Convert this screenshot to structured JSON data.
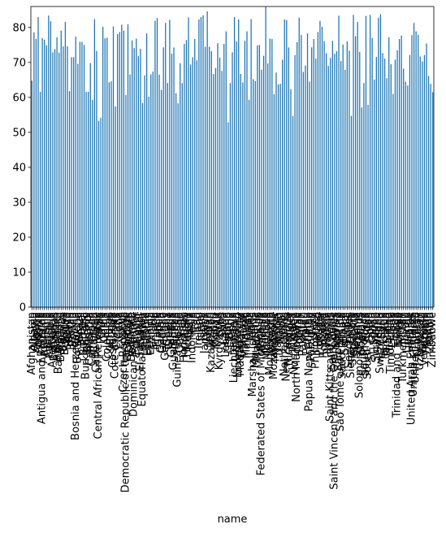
{
  "chart_data": {
    "type": "bar",
    "title": "",
    "xlabel": "name",
    "ylabel": "",
    "ylim": [
      0,
      86
    ],
    "yticks": [
      0,
      10,
      20,
      30,
      40,
      50,
      60,
      70,
      80
    ],
    "grid": false,
    "legend": "none",
    "bar_color": "#1f77b4",
    "categories": [
      "Afghanistan",
      "Albania",
      "Algeria",
      "Andorra",
      "Angola",
      "Antigua and Barbuda",
      "Argentina",
      "Armenia",
      "Australia",
      "Austria",
      "Azerbaijan",
      "Bahamas",
      "Bahrain",
      "Bangladesh",
      "Barbados",
      "Belarus",
      "Belgium",
      "Belize",
      "Benin",
      "Bhutan",
      "Bolivia",
      "Bosnia and Herzegovina",
      "Botswana",
      "Brazil",
      "Brunei",
      "Bulgaria",
      "Burkina Faso",
      "Burundi",
      "Cambodia",
      "Cameroon",
      "Canada",
      "Cape Verde",
      "Central African Republic",
      "Chad",
      "Chile",
      "China",
      "Colombia",
      "Comoros",
      "Congo",
      "Costa Rica",
      "Cote d'Ivoire",
      "Croatia",
      "Cuba",
      "Cyprus",
      "Czech Republic",
      "Democratic Republic of the Congo",
      "Denmark",
      "Djibouti",
      "Dominica",
      "Dominican Republic",
      "Ecuador",
      "Egypt",
      "El Salvador",
      "Equatorial Guinea",
      "Eritrea",
      "Estonia",
      "Eswatini",
      "Ethiopia",
      "Fiji",
      "Finland",
      "France",
      "Gabon",
      "Gambia",
      "Georgia",
      "Germany",
      "Ghana",
      "Greece",
      "Grenada",
      "Guatemala",
      "Guinea",
      "Guinea-Bissau",
      "Guyana",
      "Haiti",
      "Honduras",
      "Hungary",
      "Iceland",
      "India",
      "Indonesia",
      "Iran",
      "Iraq",
      "Ireland",
      "Israel",
      "Italy",
      "Jamaica",
      "Japan",
      "Jordan",
      "Kazakhstan",
      "Kenya",
      "Kiribati",
      "Kuwait",
      "Kyrgyzstan",
      "Laos",
      "Latvia",
      "Lebanon",
      "Lesotho",
      "Liberia",
      "Libya",
      "Liechtenstein",
      "Lithuania",
      "Luxembourg",
      "Madagascar",
      "Malawi",
      "Malaysia",
      "Maldives",
      "Mali",
      "Malta",
      "Marshall Islands",
      "Mauritania",
      "Mauritius",
      "Mexico",
      "Federated States of Micronesia",
      "Moldova",
      "Monaco",
      "Mongolia",
      "Montenegro",
      "Morocco",
      "Mozambique",
      "Myanmar",
      "Namibia",
      "Nauru",
      "Nepal",
      "Netherlands",
      "New Zealand",
      "Nicaragua",
      "Niger",
      "Nigeria",
      "North Korea",
      "North Macedonia",
      "Norway",
      "Oman",
      "Pakistan",
      "Palau",
      "Panama",
      "Papua New Guinea",
      "Paraguay",
      "Peru",
      "Philippines",
      "Poland",
      "Portugal",
      "Qatar",
      "Romania",
      "Russia",
      "Rwanda",
      "Saint Kitts and Nevis",
      "Saint Lucia",
      "Saint Vincent and the Grenadines",
      "Samoa",
      "San Marino",
      "Sao Tome and Principe",
      "Saudi Arabia",
      "Senegal",
      "Serbia",
      "Seychelles",
      "Sierra Leone",
      "Singapore",
      "Slovakia",
      "Slovenia",
      "Solomon Islands",
      "Somalia",
      "South Africa",
      "South Korea",
      "South Sudan",
      "Spain",
      "Sri Lanka",
      "Sudan",
      "Suriname",
      "Sweden",
      "Switzerland",
      "Syria",
      "Tajikistan",
      "Tanzania",
      "Thailand",
      "Timor-Leste",
      "Togo",
      "Tonga",
      "Trinidad and Tobago",
      "Tunisia",
      "Turkey",
      "Turkmenistan",
      "Tuvalu",
      "Uganda",
      "Ukraine",
      "United Arab Emirates",
      "United Kingdom",
      "United States",
      "Uruguay",
      "Uzbekistan",
      "Vanuatu",
      "Venezuela",
      "Vietnam",
      "Yemen",
      "Zambia",
      "Zimbabwe"
    ],
    "values": [
      64.8,
      78.6,
      76.7,
      83.0,
      61.6,
      77.0,
      76.5,
      74.9,
      83.4,
      81.8,
      72.9,
      73.8,
      77.2,
      72.8,
      79.1,
      74.6,
      81.6,
      74.6,
      61.8,
      71.5,
      71.5,
      77.4,
      69.6,
      75.9,
      75.9,
      75.0,
      61.6,
      61.6,
      69.8,
      59.3,
      82.4,
      73.3,
      53.3,
      54.2,
      80.2,
      76.9,
      77.1,
      64.3,
      64.6,
      80.3,
      57.4,
      78.1,
      78.7,
      80.8,
      79.1,
      60.7,
      80.9,
      66.6,
      76.3,
      74.1,
      76.8,
      71.8,
      73.9,
      58.4,
      66.3,
      78.3,
      60.2,
      66.6,
      67.4,
      81.9,
      82.7,
      66.5,
      62.1,
      74.3,
      81.3,
      64.1,
      82.2,
      72.5,
      74.3,
      61.2,
      58.3,
      69.8,
      64.1,
      75.3,
      76.4,
      82.9,
      69.4,
      71.5,
      76.7,
      70.6,
      82.3,
      83.0,
      83.5,
      74.5,
      84.6,
      74.5,
      73.2,
      66.7,
      68.4,
      75.5,
      71.4,
      67.6,
      75.3,
      78.9,
      52.9,
      64.1,
      72.9,
      83.0,
      76.0,
      82.3,
      66.7,
      64.3,
      76.2,
      78.9,
      59.3,
      82.4,
      65.2,
      64.7,
      74.9,
      75.0,
      67.9,
      71.9,
      85.9,
      69.7,
      76.8,
      76.7,
      60.9,
      67.1,
      63.7,
      63.9,
      70.8,
      82.3,
      82.1,
      74.3,
      62.4,
      54.7,
      72.1,
      75.8,
      82.8,
      77.9,
      67.3,
      69.1,
      78.3,
      64.5,
      74.3,
      76.7,
      71.1,
      78.7,
      81.9,
      80.2,
      76.1,
      72.6,
      69.0,
      71.3,
      76.2,
      72.5,
      73.2,
      83.4,
      70.4,
      75.1,
      67.9,
      76.0,
      73.4,
      54.7,
      83.6,
      77.5,
      81.6,
      73.0,
      57.1,
      64.1,
      83.3,
      57.9,
      83.6,
      77.0,
      65.1,
      71.6,
      82.8,
      83.8,
      72.7,
      71.1,
      65.5,
      77.2,
      69.5,
      61.0,
      70.8,
      73.5,
      76.7,
      77.7,
      68.2,
      64.5,
      63.4,
      72.1,
      77.8,
      81.3,
      78.9,
      77.9,
      71.7,
      70.3,
      72.1,
      75.4,
      66.1,
      63.9,
      61.5
    ]
  },
  "axes": {
    "y_tick_labels": [
      "0",
      "10",
      "20",
      "30",
      "40",
      "50",
      "60",
      "70",
      "80"
    ]
  }
}
